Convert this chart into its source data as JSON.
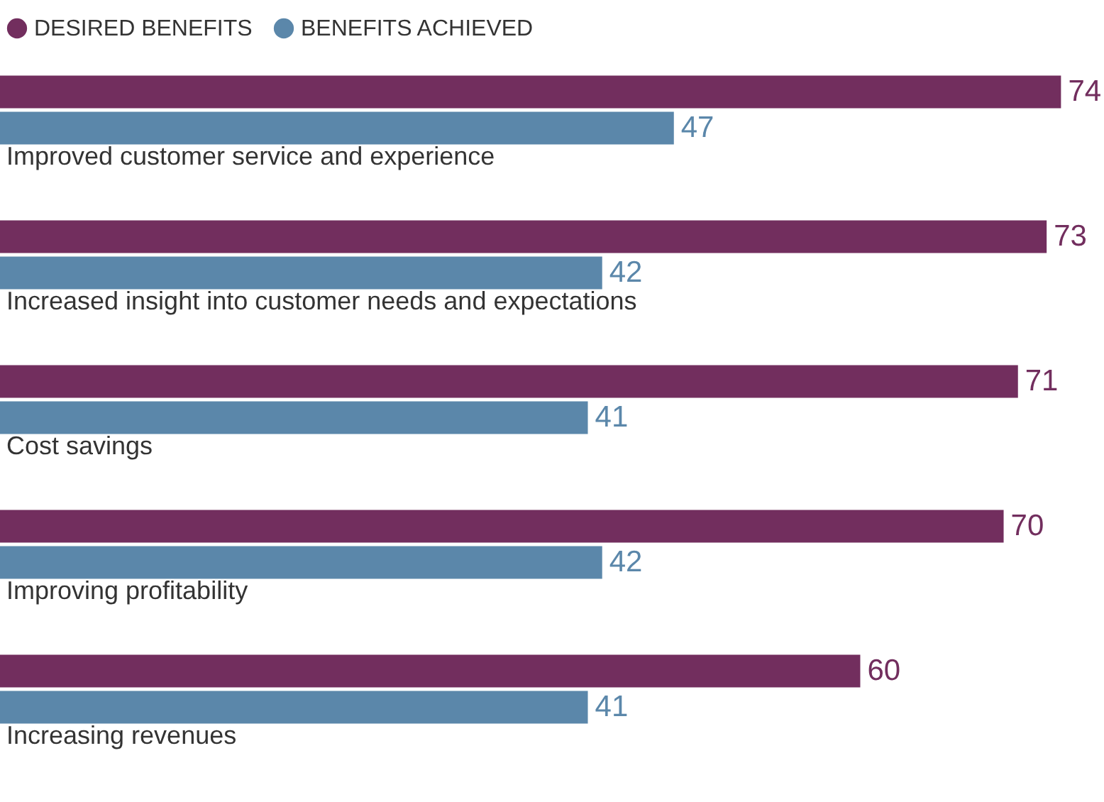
{
  "chart_data": {
    "type": "bar",
    "orientation": "horizontal",
    "categories": [
      "Improved customer service and experience",
      "Increased insight into customer needs and expectations",
      "Cost savings",
      "Improving profitability",
      "Increasing revenues"
    ],
    "series": [
      {
        "name": "DESIRED BENEFITS",
        "color": "#722e5e",
        "values": [
          74,
          73,
          71,
          70,
          60
        ]
      },
      {
        "name": "BENEFITS ACHIEVED",
        "color": "#5b87aa",
        "values": [
          47,
          42,
          41,
          42,
          41
        ]
      }
    ],
    "xlim": [
      0,
      77
    ],
    "tick_labels": "y",
    "legend": "top left",
    "data_labels": true
  }
}
